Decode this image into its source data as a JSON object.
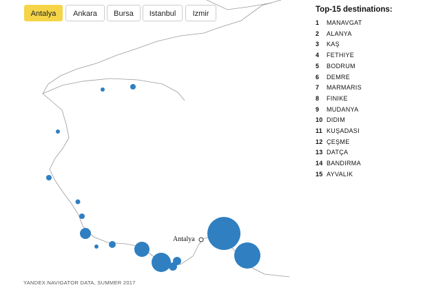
{
  "tabs": [
    {
      "label": "Antalya",
      "active": true
    },
    {
      "label": "Ankara",
      "active": false
    },
    {
      "label": "Bursa",
      "active": false
    },
    {
      "label": "Istanbul",
      "active": false
    },
    {
      "label": "Izmir",
      "active": false
    }
  ],
  "list": {
    "title": "Top-15 destinations:",
    "items": [
      {
        "rank": 1,
        "name": "MANAVGAT"
      },
      {
        "rank": 2,
        "name": "ALANYA"
      },
      {
        "rank": 3,
        "name": "KAŞ"
      },
      {
        "rank": 4,
        "name": "FETHIYE"
      },
      {
        "rank": 5,
        "name": "BODRUM"
      },
      {
        "rank": 6,
        "name": "DEMRE"
      },
      {
        "rank": 7,
        "name": "MARMARIS"
      },
      {
        "rank": 8,
        "name": "FINIKE"
      },
      {
        "rank": 9,
        "name": "MUDANYA"
      },
      {
        "rank": 10,
        "name": "DIDIM"
      },
      {
        "rank": 11,
        "name": "KUŞADASI"
      },
      {
        "rank": 12,
        "name": "ÇEŞME"
      },
      {
        "rank": 13,
        "name": "DATÇA"
      },
      {
        "rank": 14,
        "name": "BANDIRMA"
      },
      {
        "rank": 15,
        "name": "AYVALIK"
      }
    ]
  },
  "map": {
    "city_label": "Antalya"
  },
  "footer": "YANDEX.NAVIGATOR DATA, SUMMER 2017"
}
